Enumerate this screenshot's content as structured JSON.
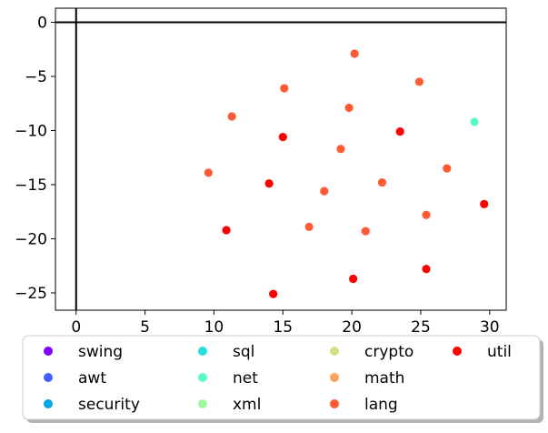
{
  "chart_data": {
    "type": "scatter",
    "title": "",
    "xlabel": "",
    "ylabel": "",
    "xlim": [
      -1.5,
      31.2
    ],
    "ylim": [
      -26.6,
      1.3
    ],
    "xticks": [
      0,
      5,
      10,
      15,
      20,
      25,
      30
    ],
    "yticks": [
      0,
      -5,
      -10,
      -15,
      -20,
      -25
    ],
    "reference_lines": {
      "x": 0,
      "y": 0
    },
    "grid": false,
    "legend": {
      "placement": "bottom-center, below axes",
      "columns": 4
    },
    "series": [
      {
        "name": "swing",
        "color": "#8000ff",
        "points": []
      },
      {
        "name": "awt",
        "color": "#4062fa",
        "points": []
      },
      {
        "name": "security",
        "color": "#00a9e6",
        "points": []
      },
      {
        "name": "sql",
        "color": "#2adddd",
        "points": []
      },
      {
        "name": "net",
        "color": "#5afac2",
        "points": [
          [
            28.9,
            -9.2
          ]
        ]
      },
      {
        "name": "xml",
        "color": "#9dfa9d",
        "points": []
      },
      {
        "name": "crypto",
        "color": "#d4dd80",
        "points": []
      },
      {
        "name": "math",
        "color": "#ffa15a",
        "points": []
      },
      {
        "name": "lang",
        "color": "#ff5a33",
        "points": [
          [
            20.2,
            -2.9
          ],
          [
            24.9,
            -5.5
          ],
          [
            15.1,
            -6.1
          ],
          [
            19.8,
            -7.9
          ],
          [
            11.3,
            -8.7
          ],
          [
            19.2,
            -11.7
          ],
          [
            9.6,
            -13.9
          ],
          [
            26.9,
            -13.5
          ],
          [
            22.2,
            -14.8
          ],
          [
            18.0,
            -15.6
          ],
          [
            25.4,
            -17.8
          ],
          [
            16.9,
            -18.9
          ],
          [
            21.0,
            -19.3
          ]
        ]
      },
      {
        "name": "util",
        "color": "#ff0000",
        "points": [
          [
            15.0,
            -10.6
          ],
          [
            23.5,
            -10.1
          ],
          [
            14.0,
            -14.9
          ],
          [
            29.6,
            -16.8
          ],
          [
            10.9,
            -19.2
          ],
          [
            20.1,
            -23.7
          ],
          [
            25.4,
            -22.8
          ],
          [
            14.3,
            -25.1
          ]
        ]
      }
    ]
  }
}
